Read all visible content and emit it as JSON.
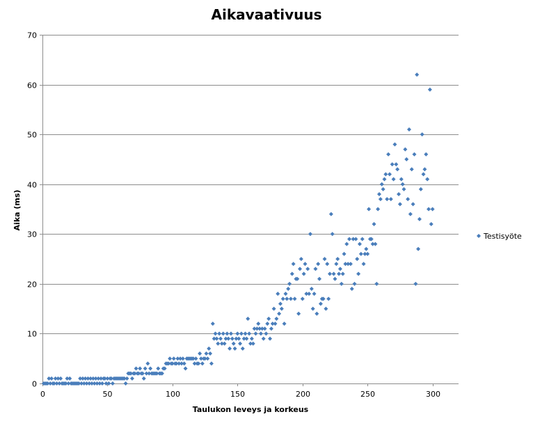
{
  "chart_data": {
    "type": "scatter",
    "title": "Aikavaativuus",
    "xlabel": "Taulukon leveys ja korkeus",
    "ylabel": "Aika (ms)",
    "xlim": [
      0,
      320
    ],
    "ylim": [
      0,
      70
    ],
    "x_ticks": [
      "0",
      "50",
      "100",
      "150",
      "200",
      "250",
      "300"
    ],
    "y_ticks": [
      "0",
      "10",
      "20",
      "30",
      "40",
      "50",
      "60",
      "70"
    ],
    "grid": "horizontal",
    "legend_position": "right",
    "marker_color": "#4a7ebb",
    "series": [
      {
        "name": "Testisyöte",
        "points": [
          [
            1,
            0
          ],
          [
            2,
            0
          ],
          [
            3,
            0
          ],
          [
            4,
            0
          ],
          [
            5,
            1
          ],
          [
            6,
            0
          ],
          [
            7,
            1
          ],
          [
            8,
            0
          ],
          [
            9,
            0
          ],
          [
            10,
            1
          ],
          [
            11,
            0
          ],
          [
            12,
            1
          ],
          [
            13,
            0
          ],
          [
            14,
            1
          ],
          [
            15,
            0
          ],
          [
            16,
            0
          ],
          [
            17,
            0
          ],
          [
            18,
            0
          ],
          [
            19,
            1
          ],
          [
            20,
            0
          ],
          [
            21,
            1
          ],
          [
            22,
            0
          ],
          [
            23,
            0
          ],
          [
            24,
            0
          ],
          [
            25,
            0
          ],
          [
            26,
            0
          ],
          [
            27,
            0
          ],
          [
            28,
            0
          ],
          [
            29,
            1
          ],
          [
            30,
            0
          ],
          [
            31,
            1
          ],
          [
            32,
            0
          ],
          [
            33,
            1
          ],
          [
            34,
            0
          ],
          [
            35,
            1
          ],
          [
            36,
            0
          ],
          [
            37,
            1
          ],
          [
            38,
            0
          ],
          [
            39,
            1
          ],
          [
            40,
            0
          ],
          [
            41,
            1
          ],
          [
            42,
            0
          ],
          [
            43,
            1
          ],
          [
            44,
            0
          ],
          [
            45,
            1
          ],
          [
            46,
            0
          ],
          [
            47,
            1
          ],
          [
            48,
            1
          ],
          [
            49,
            0
          ],
          [
            50,
            1
          ],
          [
            51,
            0
          ],
          [
            52,
            1
          ],
          [
            53,
            1
          ],
          [
            54,
            0
          ],
          [
            55,
            1
          ],
          [
            56,
            1
          ],
          [
            57,
            1
          ],
          [
            58,
            1
          ],
          [
            59,
            1
          ],
          [
            60,
            1
          ],
          [
            61,
            1
          ],
          [
            62,
            1
          ],
          [
            63,
            1
          ],
          [
            64,
            0
          ],
          [
            65,
            1
          ],
          [
            66,
            2
          ],
          [
            67,
            2
          ],
          [
            68,
            2
          ],
          [
            69,
            1
          ],
          [
            70,
            2
          ],
          [
            71,
            2
          ],
          [
            72,
            3
          ],
          [
            73,
            2
          ],
          [
            74,
            2
          ],
          [
            75,
            3
          ],
          [
            76,
            2
          ],
          [
            77,
            2
          ],
          [
            78,
            1
          ],
          [
            79,
            3
          ],
          [
            80,
            2
          ],
          [
            81,
            4
          ],
          [
            82,
            2
          ],
          [
            83,
            3
          ],
          [
            84,
            2
          ],
          [
            85,
            2
          ],
          [
            86,
            2
          ],
          [
            87,
            2
          ],
          [
            88,
            2
          ],
          [
            89,
            3
          ],
          [
            90,
            2
          ],
          [
            91,
            2
          ],
          [
            92,
            2
          ],
          [
            93,
            3
          ],
          [
            94,
            3
          ],
          [
            95,
            4
          ],
          [
            96,
            4
          ],
          [
            97,
            4
          ],
          [
            98,
            5
          ],
          [
            99,
            4
          ],
          [
            100,
            4
          ],
          [
            101,
            5
          ],
          [
            102,
            4
          ],
          [
            103,
            4
          ],
          [
            104,
            5
          ],
          [
            105,
            4
          ],
          [
            106,
            5
          ],
          [
            107,
            4
          ],
          [
            108,
            5
          ],
          [
            109,
            4
          ],
          [
            110,
            3
          ],
          [
            111,
            5
          ],
          [
            112,
            5
          ],
          [
            113,
            5
          ],
          [
            114,
            5
          ],
          [
            115,
            5
          ],
          [
            116,
            5
          ],
          [
            117,
            4
          ],
          [
            118,
            5
          ],
          [
            119,
            4
          ],
          [
            120,
            4
          ],
          [
            121,
            6
          ],
          [
            122,
            5
          ],
          [
            123,
            4
          ],
          [
            124,
            5
          ],
          [
            125,
            5
          ],
          [
            126,
            6
          ],
          [
            127,
            5
          ],
          [
            128,
            7
          ],
          [
            129,
            6
          ],
          [
            130,
            4
          ],
          [
            131,
            12
          ],
          [
            132,
            9
          ],
          [
            133,
            10
          ],
          [
            134,
            9
          ],
          [
            135,
            8
          ],
          [
            136,
            10
          ],
          [
            137,
            9
          ],
          [
            138,
            8
          ],
          [
            139,
            10
          ],
          [
            140,
            8
          ],
          [
            141,
            9
          ],
          [
            142,
            10
          ],
          [
            143,
            9
          ],
          [
            144,
            7
          ],
          [
            145,
            10
          ],
          [
            146,
            9
          ],
          [
            147,
            8
          ],
          [
            148,
            7
          ],
          [
            149,
            9
          ],
          [
            150,
            10
          ],
          [
            151,
            9
          ],
          [
            152,
            8
          ],
          [
            153,
            10
          ],
          [
            154,
            7
          ],
          [
            155,
            9
          ],
          [
            156,
            10
          ],
          [
            157,
            9
          ],
          [
            158,
            13
          ],
          [
            159,
            10
          ],
          [
            160,
            8
          ],
          [
            161,
            9
          ],
          [
            162,
            8
          ],
          [
            163,
            11
          ],
          [
            164,
            10
          ],
          [
            165,
            11
          ],
          [
            166,
            12
          ],
          [
            167,
            11
          ],
          [
            168,
            10
          ],
          [
            169,
            11
          ],
          [
            170,
            9
          ],
          [
            171,
            11
          ],
          [
            172,
            10
          ],
          [
            173,
            12
          ],
          [
            174,
            13
          ],
          [
            175,
            9
          ],
          [
            176,
            11
          ],
          [
            177,
            12
          ],
          [
            178,
            15
          ],
          [
            179,
            12
          ],
          [
            180,
            13
          ],
          [
            181,
            18
          ],
          [
            182,
            14
          ],
          [
            183,
            16
          ],
          [
            184,
            15
          ],
          [
            185,
            17
          ],
          [
            186,
            12
          ],
          [
            187,
            18
          ],
          [
            188,
            17
          ],
          [
            189,
            19
          ],
          [
            190,
            20
          ],
          [
            191,
            17
          ],
          [
            192,
            22
          ],
          [
            193,
            24
          ],
          [
            194,
            17
          ],
          [
            195,
            21
          ],
          [
            196,
            21
          ],
          [
            197,
            14
          ],
          [
            198,
            23
          ],
          [
            199,
            25
          ],
          [
            200,
            17
          ],
          [
            201,
            22
          ],
          [
            202,
            24
          ],
          [
            203,
            18
          ],
          [
            204,
            23
          ],
          [
            205,
            18
          ],
          [
            206,
            30
          ],
          [
            207,
            19
          ],
          [
            208,
            15
          ],
          [
            209,
            18
          ],
          [
            210,
            23
          ],
          [
            211,
            14
          ],
          [
            212,
            24
          ],
          [
            213,
            21
          ],
          [
            214,
            16
          ],
          [
            215,
            17
          ],
          [
            216,
            17
          ],
          [
            217,
            25
          ],
          [
            218,
            15
          ],
          [
            219,
            24
          ],
          [
            220,
            17
          ],
          [
            221,
            22
          ],
          [
            222,
            34
          ],
          [
            223,
            30
          ],
          [
            224,
            22
          ],
          [
            225,
            21
          ],
          [
            226,
            24
          ],
          [
            227,
            25
          ],
          [
            228,
            22
          ],
          [
            229,
            23
          ],
          [
            230,
            20
          ],
          [
            231,
            22
          ],
          [
            232,
            26
          ],
          [
            233,
            24
          ],
          [
            234,
            28
          ],
          [
            235,
            24
          ],
          [
            236,
            29
          ],
          [
            237,
            24
          ],
          [
            238,
            19
          ],
          [
            239,
            29
          ],
          [
            240,
            20
          ],
          [
            241,
            29
          ],
          [
            242,
            25
          ],
          [
            243,
            22
          ],
          [
            244,
            28
          ],
          [
            245,
            26
          ],
          [
            246,
            29
          ],
          [
            247,
            24
          ],
          [
            248,
            26
          ],
          [
            249,
            27
          ],
          [
            250,
            26
          ],
          [
            251,
            35
          ],
          [
            252,
            29
          ],
          [
            253,
            29
          ],
          [
            254,
            28
          ],
          [
            255,
            32
          ],
          [
            256,
            28
          ],
          [
            257,
            20
          ],
          [
            258,
            35
          ],
          [
            259,
            38
          ],
          [
            260,
            37
          ],
          [
            261,
            40
          ],
          [
            262,
            39
          ],
          [
            263,
            41
          ],
          [
            264,
            42
          ],
          [
            265,
            37
          ],
          [
            266,
            46
          ],
          [
            267,
            42
          ],
          [
            268,
            37
          ],
          [
            269,
            44
          ],
          [
            270,
            41
          ],
          [
            271,
            48
          ],
          [
            272,
            44
          ],
          [
            273,
            43
          ],
          [
            274,
            38
          ],
          [
            275,
            36
          ],
          [
            276,
            41
          ],
          [
            277,
            40
          ],
          [
            278,
            39
          ],
          [
            279,
            47
          ],
          [
            280,
            45
          ],
          [
            281,
            37
          ],
          [
            282,
            51
          ],
          [
            283,
            34
          ],
          [
            284,
            43
          ],
          [
            285,
            36
          ],
          [
            286,
            46
          ],
          [
            287,
            20
          ],
          [
            288,
            62
          ],
          [
            289,
            27
          ],
          [
            290,
            33
          ],
          [
            291,
            39
          ],
          [
            292,
            50
          ],
          [
            293,
            42
          ],
          [
            294,
            43
          ],
          [
            295,
            46
          ],
          [
            296,
            41
          ],
          [
            297,
            35
          ],
          [
            298,
            59
          ],
          [
            299,
            32
          ],
          [
            300,
            35
          ]
        ]
      }
    ]
  }
}
